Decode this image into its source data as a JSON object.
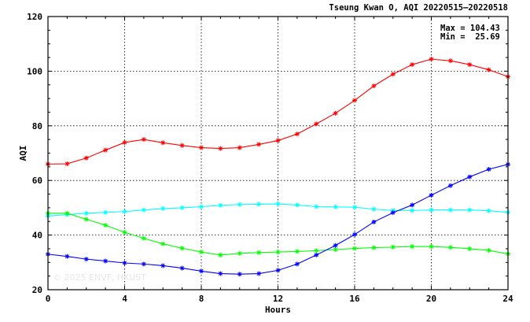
{
  "chart_data": {
    "type": "line",
    "title": "Tseung Kwan O, AQI 20220515—20220518",
    "xlabel": "Hours",
    "ylabel": "AQI",
    "xlim": [
      0,
      24
    ],
    "ylim": [
      20,
      120
    ],
    "x_ticks": [
      "0",
      "4",
      "8",
      "12",
      "16",
      "20",
      "24"
    ],
    "y_ticks": [
      "20",
      "40",
      "60",
      "80",
      "100",
      "120"
    ],
    "grid": true,
    "x": [
      0,
      1,
      2,
      3,
      4,
      5,
      6,
      7,
      8,
      9,
      10,
      11,
      12,
      13,
      14,
      15,
      16,
      17,
      18,
      19,
      20,
      21,
      22,
      23,
      24
    ],
    "series": [
      {
        "color": "#ff0000",
        "values": [
          66.0,
          66.1,
          68.2,
          71.1,
          73.9,
          75.0,
          73.8,
          72.8,
          72.0,
          71.7,
          72.0,
          73.2,
          74.6,
          77.0,
          80.7,
          84.6,
          89.3,
          94.6,
          98.9,
          102.4,
          104.4,
          103.8,
          102.4,
          100.5,
          98.0
        ]
      },
      {
        "color": "#00ffff",
        "values": [
          47.0,
          47.5,
          48.0,
          48.3,
          48.6,
          49.2,
          49.7,
          50.0,
          50.4,
          50.9,
          51.2,
          51.3,
          51.4,
          51.0,
          50.4,
          50.3,
          50.2,
          49.5,
          49.0,
          49.0,
          49.2,
          49.2,
          49.2,
          48.9,
          48.3
        ]
      },
      {
        "color": "#00ff00",
        "values": [
          48.0,
          48.0,
          45.8,
          43.6,
          41.0,
          38.8,
          36.8,
          35.2,
          33.8,
          32.7,
          33.3,
          33.6,
          33.8,
          34.0,
          34.3,
          34.7,
          35.1,
          35.4,
          35.6,
          35.8,
          35.8,
          35.5,
          35.0,
          34.4,
          33.1
        ]
      },
      {
        "color": "#0000ff",
        "values": [
          33.0,
          32.2,
          31.2,
          30.5,
          29.8,
          29.4,
          28.8,
          27.9,
          26.8,
          25.9,
          25.7,
          25.9,
          27.1,
          29.4,
          32.7,
          36.2,
          40.2,
          44.8,
          48.2,
          51.0,
          54.6,
          58.1,
          61.3,
          64.1,
          65.9
        ]
      }
    ],
    "stats": {
      "max_line": "Max = 104.43",
      "min_line": "Min =  25.69"
    },
    "watermark": "© 2025  ENVF, HKUST"
  }
}
